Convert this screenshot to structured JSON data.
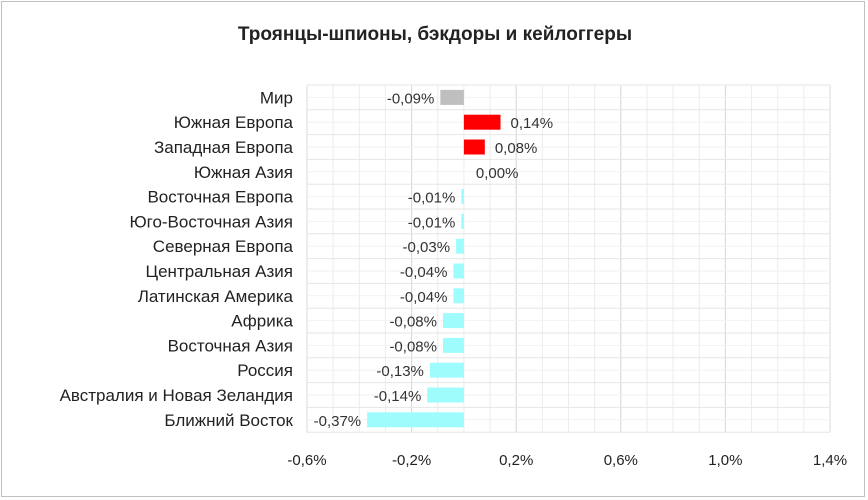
{
  "chart_data": {
    "type": "bar",
    "orientation": "horizontal",
    "title": "Троянцы-шпионы, бэкдоры и кейлоггеры",
    "xlim": [
      -0.006,
      0.014
    ],
    "ticks": [
      -0.006,
      -0.002,
      0.002,
      0.006,
      0.01,
      0.014
    ],
    "tick_labels": [
      "-0,6%",
      "-0,2%",
      "0,2%",
      "0,6%",
      "1,0%",
      "1,4%"
    ],
    "grid": true,
    "categories": [
      "Мир",
      "Южная Европа",
      "Западная Европа",
      "Южная Азия",
      "Восточная Европа",
      "Юго-Восточная Азия",
      "Северная Европа",
      "Центральная Азия",
      "Латинская Америка",
      "Африка",
      "Восточная Азия",
      "Россия",
      "Австралия и Новая Зеландия",
      "Ближний Восток"
    ],
    "values": [
      -0.0009,
      0.0014,
      0.0008,
      0.0,
      -0.0001,
      -0.0001,
      -0.0003,
      -0.0004,
      -0.0004,
      -0.0008,
      -0.0008,
      -0.0013,
      -0.0014,
      -0.0037
    ],
    "value_labels": [
      "-0,09%",
      "0,14%",
      "0,08%",
      "0,00%",
      "-0,01%",
      "-0,01%",
      "-0,03%",
      "-0,04%",
      "-0,04%",
      "-0,08%",
      "-0,08%",
      "-0,13%",
      "-0,14%",
      "-0,37%"
    ],
    "colors": {
      "world": "#bfbfbf",
      "positive": "#ff0000",
      "negative": "#9ffcfc",
      "grid": "#d9d9d9"
    }
  }
}
